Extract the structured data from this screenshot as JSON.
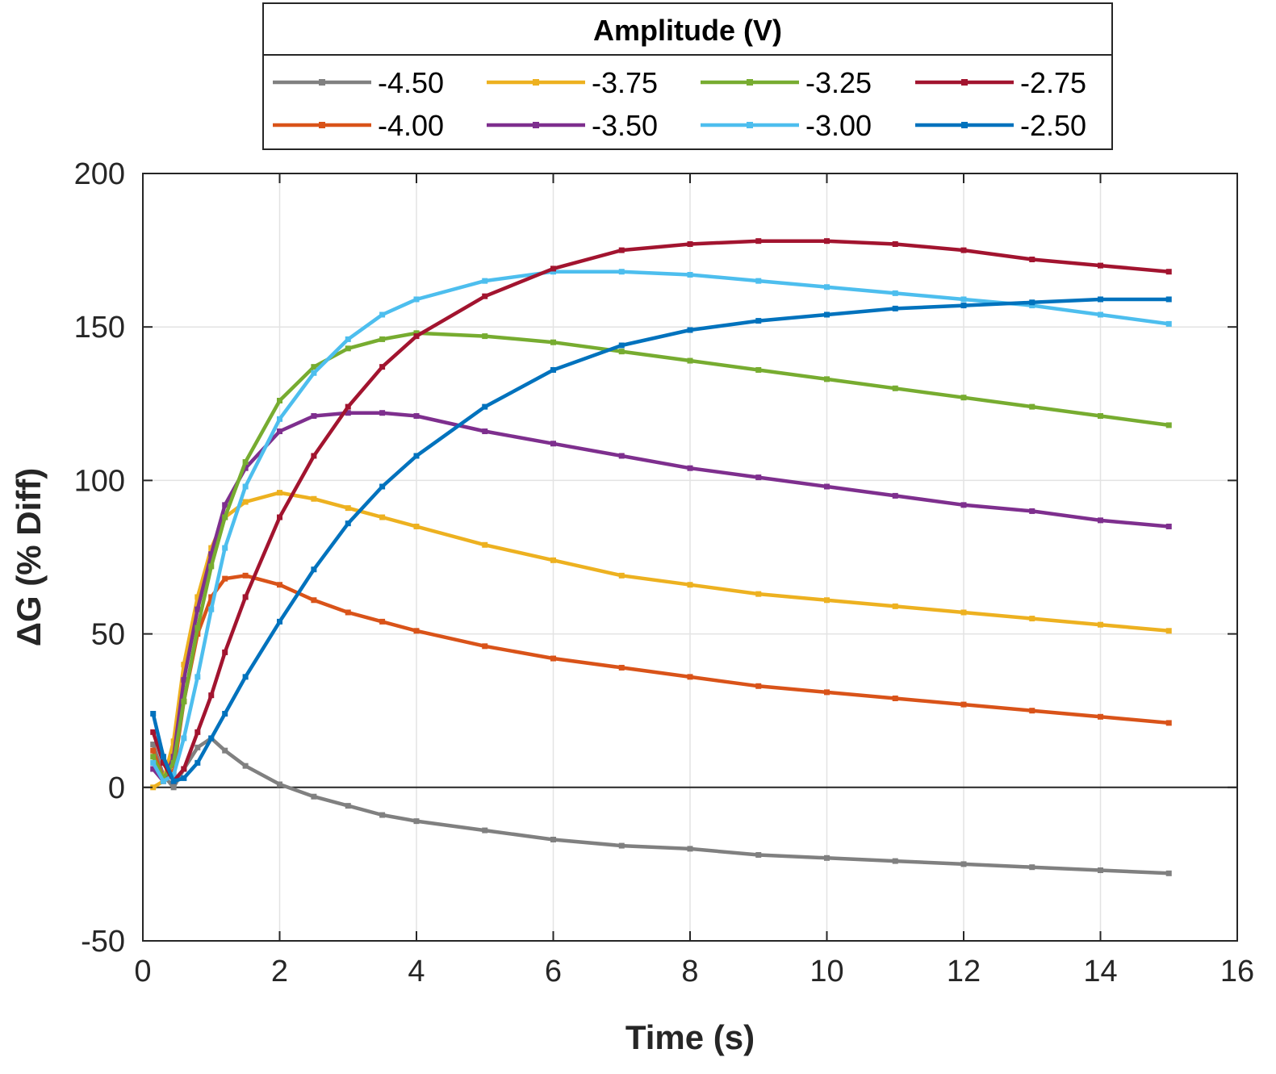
{
  "chart_data": {
    "type": "line",
    "xlabel": "Time (s)",
    "ylabel": "ΔG (% Diff)",
    "xlim": [
      0,
      16
    ],
    "ylim": [
      -50,
      200
    ],
    "xticks": [
      0,
      2,
      4,
      6,
      8,
      10,
      12,
      14,
      16
    ],
    "yticks": [
      -50,
      0,
      50,
      100,
      150,
      200
    ],
    "grid": true,
    "legend": {
      "title": "Amplitude (V)",
      "placement": "top-outside",
      "columns": 4
    },
    "series": [
      {
        "name": "-4.50",
        "color": "#808080",
        "points": [
          [
            0.15,
            14
          ],
          [
            0.3,
            4
          ],
          [
            0.45,
            0
          ],
          [
            0.6,
            6
          ],
          [
            0.8,
            13
          ],
          [
            1.0,
            16
          ],
          [
            1.2,
            12
          ],
          [
            1.5,
            7
          ],
          [
            2.0,
            1
          ],
          [
            2.5,
            -3
          ],
          [
            3.0,
            -6
          ],
          [
            3.5,
            -9
          ],
          [
            4.0,
            -11
          ],
          [
            5.0,
            -14
          ],
          [
            6.0,
            -17
          ],
          [
            7.0,
            -19
          ],
          [
            8.0,
            -20
          ],
          [
            9.0,
            -22
          ],
          [
            10.0,
            -23
          ],
          [
            11.0,
            -24
          ],
          [
            12.0,
            -25
          ],
          [
            13.0,
            -26
          ],
          [
            14.0,
            -27
          ],
          [
            15.0,
            -28
          ]
        ]
      },
      {
        "name": "-4.00",
        "color": "#d95319",
        "points": [
          [
            0.15,
            12
          ],
          [
            0.3,
            3
          ],
          [
            0.45,
            5
          ],
          [
            0.6,
            28
          ],
          [
            0.8,
            50
          ],
          [
            1.0,
            62
          ],
          [
            1.2,
            68
          ],
          [
            1.5,
            69
          ],
          [
            2.0,
            66
          ],
          [
            2.5,
            61
          ],
          [
            3.0,
            57
          ],
          [
            3.5,
            54
          ],
          [
            4.0,
            51
          ],
          [
            5.0,
            46
          ],
          [
            6.0,
            42
          ],
          [
            7.0,
            39
          ],
          [
            8.0,
            36
          ],
          [
            9.0,
            33
          ],
          [
            10.0,
            31
          ],
          [
            11.0,
            29
          ],
          [
            12.0,
            27
          ],
          [
            13.0,
            25
          ],
          [
            14.0,
            23
          ],
          [
            15.0,
            21
          ]
        ]
      },
      {
        "name": "-3.75",
        "color": "#edb120",
        "points": [
          [
            0.15,
            0
          ],
          [
            0.3,
            2
          ],
          [
            0.45,
            15
          ],
          [
            0.6,
            40
          ],
          [
            0.8,
            62
          ],
          [
            1.0,
            78
          ],
          [
            1.2,
            88
          ],
          [
            1.5,
            93
          ],
          [
            2.0,
            96
          ],
          [
            2.5,
            94
          ],
          [
            3.0,
            91
          ],
          [
            3.5,
            88
          ],
          [
            4.0,
            85
          ],
          [
            5.0,
            79
          ],
          [
            6.0,
            74
          ],
          [
            7.0,
            69
          ],
          [
            8.0,
            66
          ],
          [
            9.0,
            63
          ],
          [
            10.0,
            61
          ],
          [
            11.0,
            59
          ],
          [
            12.0,
            57
          ],
          [
            13.0,
            55
          ],
          [
            14.0,
            53
          ],
          [
            15.0,
            51
          ]
        ]
      },
      {
        "name": "-3.50",
        "color": "#7e2f8e",
        "points": [
          [
            0.15,
            6
          ],
          [
            0.3,
            2
          ],
          [
            0.45,
            10
          ],
          [
            0.6,
            35
          ],
          [
            0.8,
            58
          ],
          [
            1.0,
            76
          ],
          [
            1.2,
            92
          ],
          [
            1.5,
            104
          ],
          [
            2.0,
            116
          ],
          [
            2.5,
            121
          ],
          [
            3.0,
            122
          ],
          [
            3.5,
            122
          ],
          [
            4.0,
            121
          ],
          [
            5.0,
            116
          ],
          [
            6.0,
            112
          ],
          [
            7.0,
            108
          ],
          [
            8.0,
            104
          ],
          [
            9.0,
            101
          ],
          [
            10.0,
            98
          ],
          [
            11.0,
            95
          ],
          [
            12.0,
            92
          ],
          [
            13.0,
            90
          ],
          [
            14.0,
            87
          ],
          [
            15.0,
            85
          ]
        ]
      },
      {
        "name": "-3.25",
        "color": "#77ac30",
        "points": [
          [
            0.15,
            10
          ],
          [
            0.3,
            3
          ],
          [
            0.45,
            8
          ],
          [
            0.6,
            28
          ],
          [
            0.8,
            52
          ],
          [
            1.0,
            72
          ],
          [
            1.2,
            88
          ],
          [
            1.5,
            106
          ],
          [
            2.0,
            126
          ],
          [
            2.5,
            137
          ],
          [
            3.0,
            143
          ],
          [
            3.5,
            146
          ],
          [
            4.0,
            148
          ],
          [
            5.0,
            147
          ],
          [
            6.0,
            145
          ],
          [
            7.0,
            142
          ],
          [
            8.0,
            139
          ],
          [
            9.0,
            136
          ],
          [
            10.0,
            133
          ],
          [
            11.0,
            130
          ],
          [
            12.0,
            127
          ],
          [
            13.0,
            124
          ],
          [
            14.0,
            121
          ],
          [
            15.0,
            118
          ]
        ]
      },
      {
        "name": "-3.00",
        "color": "#4dbeee",
        "points": [
          [
            0.15,
            8
          ],
          [
            0.3,
            2
          ],
          [
            0.45,
            4
          ],
          [
            0.6,
            16
          ],
          [
            0.8,
            36
          ],
          [
            1.0,
            58
          ],
          [
            1.2,
            78
          ],
          [
            1.5,
            98
          ],
          [
            2.0,
            120
          ],
          [
            2.5,
            135
          ],
          [
            3.0,
            146
          ],
          [
            3.5,
            154
          ],
          [
            4.0,
            159
          ],
          [
            5.0,
            165
          ],
          [
            6.0,
            168
          ],
          [
            7.0,
            168
          ],
          [
            8.0,
            167
          ],
          [
            9.0,
            165
          ],
          [
            10.0,
            163
          ],
          [
            11.0,
            161
          ],
          [
            12.0,
            159
          ],
          [
            13.0,
            157
          ],
          [
            14.0,
            154
          ],
          [
            15.0,
            151
          ]
        ]
      },
      {
        "name": "-2.75",
        "color": "#a2142f",
        "points": [
          [
            0.15,
            18
          ],
          [
            0.3,
            8
          ],
          [
            0.45,
            2
          ],
          [
            0.6,
            6
          ],
          [
            0.8,
            18
          ],
          [
            1.0,
            30
          ],
          [
            1.2,
            44
          ],
          [
            1.5,
            62
          ],
          [
            2.0,
            88
          ],
          [
            2.5,
            108
          ],
          [
            3.0,
            124
          ],
          [
            3.5,
            137
          ],
          [
            4.0,
            147
          ],
          [
            5.0,
            160
          ],
          [
            6.0,
            169
          ],
          [
            7.0,
            175
          ],
          [
            8.0,
            177
          ],
          [
            9.0,
            178
          ],
          [
            10.0,
            178
          ],
          [
            11.0,
            177
          ],
          [
            12.0,
            175
          ],
          [
            13.0,
            172
          ],
          [
            14.0,
            170
          ],
          [
            15.0,
            168
          ]
        ]
      },
      {
        "name": "-2.50",
        "color": "#0072bd",
        "points": [
          [
            0.15,
            24
          ],
          [
            0.3,
            10
          ],
          [
            0.45,
            2
          ],
          [
            0.6,
            3
          ],
          [
            0.8,
            8
          ],
          [
            1.0,
            16
          ],
          [
            1.2,
            24
          ],
          [
            1.5,
            36
          ],
          [
            2.0,
            54
          ],
          [
            2.5,
            71
          ],
          [
            3.0,
            86
          ],
          [
            3.5,
            98
          ],
          [
            4.0,
            108
          ],
          [
            5.0,
            124
          ],
          [
            6.0,
            136
          ],
          [
            7.0,
            144
          ],
          [
            8.0,
            149
          ],
          [
            9.0,
            152
          ],
          [
            10.0,
            154
          ],
          [
            11.0,
            156
          ],
          [
            12.0,
            157
          ],
          [
            13.0,
            158
          ],
          [
            14.0,
            159
          ],
          [
            15.0,
            159
          ]
        ]
      }
    ]
  }
}
